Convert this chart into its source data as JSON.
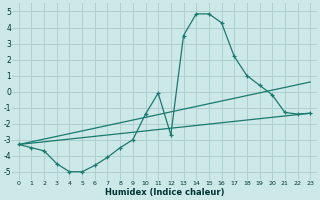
{
  "xlabel": "Humidex (Indice chaleur)",
  "bg_color": "#cce8e8",
  "grid_color": "#aacccc",
  "line_color": "#1a7a6e",
  "xlim": [
    -0.5,
    23.5
  ],
  "ylim": [
    -5.5,
    5.5
  ],
  "yticks": [
    -5,
    -4,
    -3,
    -2,
    -1,
    0,
    1,
    2,
    3,
    4,
    5
  ],
  "xticks": [
    0,
    1,
    2,
    3,
    4,
    5,
    6,
    7,
    8,
    9,
    10,
    11,
    12,
    13,
    14,
    15,
    16,
    17,
    18,
    19,
    20,
    21,
    22,
    23
  ],
  "curve1_x": [
    0,
    1,
    2,
    3,
    4,
    5,
    6,
    7,
    8,
    9,
    10,
    11,
    12,
    13,
    14,
    15,
    16,
    17,
    18,
    19,
    20,
    21,
    22,
    23
  ],
  "curve1_y": [
    -3.3,
    -3.5,
    -3.7,
    -4.5,
    -5.0,
    -5.0,
    -4.6,
    -4.1,
    -3.5,
    -3.0,
    -1.4,
    -0.1,
    -2.7,
    3.5,
    4.85,
    4.85,
    4.3,
    2.2,
    1.0,
    0.4,
    -0.2,
    -1.3,
    -1.4,
    -1.35
  ],
  "line1_x": [
    0,
    23
  ],
  "line1_y": [
    -3.3,
    -1.35
  ],
  "line2_x": [
    0,
    23
  ],
  "line2_y": [
    -3.3,
    0.6
  ]
}
